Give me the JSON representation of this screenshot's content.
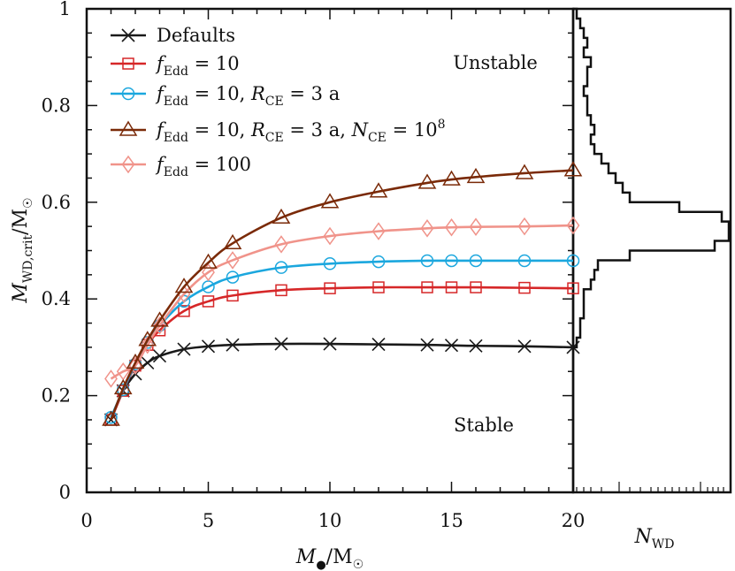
{
  "chart_data": {
    "type": "line",
    "title": "",
    "xlabel": "M●/M☉",
    "ylabel": "M_WD,crit/M☉",
    "xlim": [
      0,
      20
    ],
    "ylim": [
      0,
      1
    ],
    "xticks": [
      "0",
      "5",
      "10",
      "15",
      "20"
    ],
    "yticks": [
      "0",
      "0.2",
      "0.4",
      "0.6",
      "0.8",
      "1"
    ],
    "x": [
      1,
      1.5,
      2,
      2.5,
      3,
      4,
      5,
      6,
      8,
      10,
      12,
      14,
      15,
      16,
      18,
      20
    ],
    "series": [
      {
        "name": "Defaults",
        "color": "#1a1a1a",
        "marker": "x",
        "values": [
          0.15,
          0.21,
          0.245,
          0.268,
          0.282,
          0.296,
          0.302,
          0.305,
          0.307,
          0.307,
          0.306,
          0.305,
          0.304,
          0.303,
          0.302,
          0.3
        ]
      },
      {
        "name": "f_Edd = 10",
        "color": "#d62728",
        "marker": "square",
        "values": [
          0.15,
          0.21,
          0.262,
          0.305,
          0.335,
          0.375,
          0.395,
          0.407,
          0.418,
          0.422,
          0.424,
          0.424,
          0.424,
          0.424,
          0.423,
          0.422
        ]
      },
      {
        "name": "f_Edd = 10, R_CE = 3a",
        "color": "#1ba7de",
        "marker": "circle",
        "values": [
          0.155,
          0.212,
          0.265,
          0.31,
          0.345,
          0.395,
          0.425,
          0.445,
          0.465,
          0.473,
          0.477,
          0.479,
          0.479,
          0.479,
          0.479,
          0.479
        ]
      },
      {
        "name": "f_Edd = 10, R_CE = 3a, N_CE = 10^8",
        "color": "#7a2a08",
        "marker": "triangle",
        "values": [
          0.15,
          0.215,
          0.268,
          0.315,
          0.355,
          0.425,
          0.475,
          0.515,
          0.568,
          0.6,
          0.622,
          0.64,
          0.647,
          0.652,
          0.66,
          0.666
        ]
      },
      {
        "name": "f_Edd = 100",
        "color": "#f0938a",
        "marker": "diamond",
        "values": [
          0.235,
          0.25,
          0.262,
          0.305,
          0.345,
          0.41,
          0.455,
          0.48,
          0.513,
          0.53,
          0.54,
          0.546,
          0.548,
          0.549,
          0.55,
          0.552
        ]
      }
    ],
    "legend": [
      {
        "pre": "Defaults",
        "parts": []
      },
      {
        "parts": [
          [
            "f",
            "Edd",
            " = 10"
          ]
        ]
      },
      {
        "parts": [
          [
            "f",
            "Edd",
            " = 10, "
          ],
          [
            "R",
            "CE",
            " = 3 a"
          ]
        ]
      },
      {
        "parts": [
          [
            "f",
            "Edd",
            " = 10, "
          ],
          [
            "R",
            "CE",
            " = 3 a, "
          ],
          [
            "N",
            "CE",
            " = 10"
          ]
        ],
        "sup": "8"
      },
      {
        "parts": [
          [
            "f",
            "Edd",
            " = 100"
          ]
        ]
      }
    ],
    "annotations": {
      "unstable": "Unstable",
      "stable": "Stable"
    },
    "histogram": {
      "label": "N_WD",
      "bins_y": [
        0.3,
        0.32,
        0.34,
        0.36,
        0.38,
        0.4,
        0.42,
        0.44,
        0.46,
        0.48,
        0.5,
        0.52,
        0.54,
        0.56,
        0.58,
        0.6,
        0.62,
        0.64,
        0.66,
        0.68,
        0.7,
        0.72,
        0.74,
        0.76,
        0.78,
        0.8,
        0.82,
        0.84,
        0.86,
        0.88,
        0.9,
        0.92,
        0.94,
        0.96,
        0.98,
        1.0
      ],
      "counts": [
        0.5,
        1,
        1,
        1.5,
        1.5,
        1.5,
        2.5,
        3,
        3.5,
        8,
        20,
        22,
        22,
        21,
        15,
        8,
        7,
        6,
        5,
        4,
        3,
        2.5,
        3,
        2.5,
        2,
        2,
        1.5,
        2,
        2,
        2.5,
        1.5,
        2,
        1.5,
        1,
        0.5
      ]
    }
  }
}
